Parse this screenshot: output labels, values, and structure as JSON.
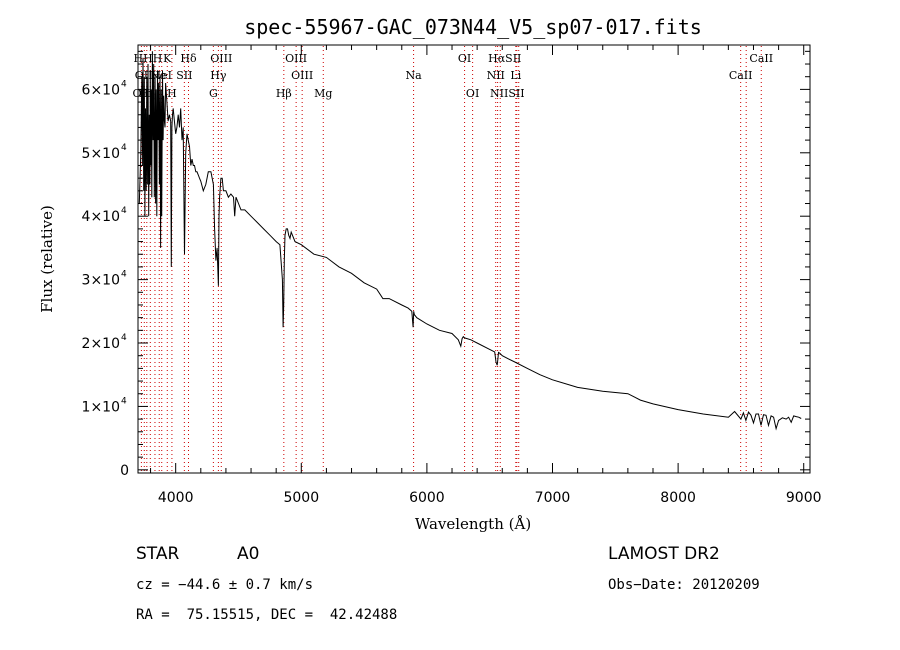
{
  "chart_data": {
    "type": "line",
    "title": "spec-55967-GAC_073N44_V5_sp07-017.fits",
    "xlabel": "Wavelength (Å)",
    "ylabel": "Flux (relative)",
    "xlim": [
      3700,
      9050
    ],
    "ylim": [
      -500,
      67000
    ],
    "x_ticks": [
      {
        "value": 4000,
        "label": "4000"
      },
      {
        "value": 5000,
        "label": "5000"
      },
      {
        "value": 6000,
        "label": "6000"
      },
      {
        "value": 7000,
        "label": "7000"
      },
      {
        "value": 8000,
        "label": "8000"
      },
      {
        "value": 9000,
        "label": "9000"
      }
    ],
    "y_ticks": [
      {
        "value": 0,
        "mant": "0",
        "exp": ""
      },
      {
        "value": 10000,
        "mant": "1×10",
        "exp": "4"
      },
      {
        "value": 20000,
        "mant": "2×10",
        "exp": "4"
      },
      {
        "value": 30000,
        "mant": "3×10",
        "exp": "4"
      },
      {
        "value": 40000,
        "mant": "4×10",
        "exp": "4"
      },
      {
        "value": 50000,
        "mant": "5×10",
        "exp": "4"
      },
      {
        "value": 60000,
        "mant": "6×10",
        "exp": "4"
      }
    ],
    "series": [
      {
        "x": [
          3710,
          3722,
          3730,
          3735,
          3740,
          3745,
          3750,
          3755,
          3760,
          3765,
          3770,
          3775,
          3780,
          3785,
          3790,
          3795,
          3798,
          3800,
          3805,
          3810,
          3815,
          3820,
          3825,
          3830,
          3835,
          3836,
          3840,
          3845,
          3850,
          3855,
          3860,
          3865,
          3870,
          3875,
          3880,
          3885,
          3889,
          3895,
          3900,
          3905,
          3910,
          3915,
          3920,
          3930,
          3940,
          3950,
          3960,
          3965,
          3970,
          3975,
          3980,
          3990,
          4000,
          4010,
          4020,
          4030,
          4040,
          4050,
          4060,
          4070,
          4080,
          4090,
          4100,
          4110,
          4120,
          4130,
          4140,
          4150,
          4160,
          4170,
          4180,
          4190,
          4200,
          4220,
          4240,
          4260,
          4280,
          4300,
          4310,
          4320,
          4330,
          4340,
          4345,
          4350,
          4360,
          4370,
          4380,
          4400,
          4420,
          4440,
          4460,
          4470,
          4480,
          4500,
          4520,
          4550,
          4600,
          4650,
          4700,
          4750,
          4800,
          4830,
          4850,
          4855,
          4860,
          4865,
          4870,
          4880,
          4890,
          4900,
          4910,
          4920,
          4950,
          5000,
          5100,
          5200,
          5300,
          5400,
          5500,
          5600,
          5650,
          5700,
          5800,
          5850,
          5880,
          5890,
          5895,
          5900,
          5920,
          6000,
          6100,
          6200,
          6250,
          6270,
          6280,
          6290,
          6300,
          6350,
          6400,
          6500,
          6540,
          6550,
          6560,
          6565,
          6570,
          6580,
          6600,
          6650,
          6700,
          6800,
          6900,
          7000,
          7200,
          7400,
          7600,
          7700,
          7800,
          8000,
          8200,
          8400,
          8450,
          8500,
          8520,
          8540,
          8560,
          8580,
          8600,
          8620,
          8640,
          8660,
          8680,
          8700,
          8720,
          8740,
          8760,
          8780,
          8800,
          8830,
          8860,
          8880,
          8900,
          8920,
          8940,
          8960,
          8980
        ],
        "y": [
          42000,
          50000,
          62000,
          48000,
          65000,
          44000,
          62000,
          40000,
          57000,
          44000,
          62000,
          45000,
          64000,
          40000,
          56000,
          45000,
          63000,
          48000,
          60000,
          43000,
          66000,
          52000,
          64000,
          43000,
          58000,
          62000,
          42000,
          60000,
          40000,
          63000,
          52000,
          61000,
          45000,
          62000,
          35000,
          60000,
          40000,
          63000,
          52000,
          59000,
          55000,
          54000,
          61000,
          58000,
          55000,
          56000,
          55000,
          32000,
          54000,
          56000,
          57000,
          55000,
          53000,
          54000,
          56000,
          54000,
          57000,
          52000,
          54000,
          34000,
          50000,
          53000,
          52000,
          51000,
          48000,
          49000,
          48000,
          48000,
          47000,
          47000,
          46500,
          46000,
          45500,
          44000,
          45000,
          47000,
          47000,
          45000,
          38000,
          33000,
          35000,
          29000,
          40000,
          43000,
          46000,
          46000,
          44000,
          44000,
          43000,
          43500,
          43000,
          40000,
          43000,
          42000,
          41000,
          41000,
          40000,
          39000,
          38000,
          37000,
          36000,
          35500,
          30000,
          22500,
          26000,
          33000,
          37000,
          38000,
          38000,
          37000,
          36500,
          37500,
          36000,
          35500,
          34000,
          33500,
          32000,
          31000,
          29500,
          28500,
          27000,
          27000,
          26000,
          25500,
          25000,
          22500,
          25000,
          24500,
          24000,
          23000,
          22000,
          21500,
          20500,
          19500,
          20700,
          21000,
          20800,
          20500,
          20000,
          19000,
          18600,
          17000,
          16500,
          17500,
          18500,
          18400,
          18000,
          17500,
          17000,
          16000,
          15000,
          14200,
          13000,
          12400,
          12000,
          11000,
          10400,
          9500,
          8800,
          8300,
          9200,
          8000,
          9000,
          7800,
          9100,
          8600,
          7400,
          8800,
          8800,
          7000,
          8700,
          8600,
          7000,
          8500,
          8300,
          6500,
          7800,
          8200,
          8000,
          8300,
          7500,
          8500,
          8400,
          8300,
          8100
        ]
      }
    ],
    "lines": [
      {
        "x": 3727,
        "label": "OII"
      },
      {
        "x": 3750,
        "label": "OII"
      },
      {
        "x": 3770,
        "label": "Hη"
      },
      {
        "x": 3798,
        "label": "Hθ"
      },
      {
        "x": 3835,
        "label": "Hζ"
      },
      {
        "x": 3869,
        "label": "NeIII"
      },
      {
        "x": 3889,
        "label": "HeI"
      },
      {
        "x": 3933,
        "label": "K"
      },
      {
        "x": 3970,
        "label": "H"
      },
      {
        "x": 4069,
        "label": "SII"
      },
      {
        "x": 4102,
        "label": "Hδ"
      },
      {
        "x": 4300,
        "label": "G"
      },
      {
        "x": 4340,
        "label": "Hγ"
      },
      {
        "x": 4363,
        "label": "OIII"
      },
      {
        "x": 4861,
        "label": "Hβ"
      },
      {
        "x": 4959,
        "label": "OIII"
      },
      {
        "x": 5007,
        "label": "OIII"
      },
      {
        "x": 5175,
        "label": "Mg"
      },
      {
        "x": 5894,
        "label": "Na"
      },
      {
        "x": 6300,
        "label": "OI"
      },
      {
        "x": 6364,
        "label": "OI"
      },
      {
        "x": 6548,
        "label": "NII"
      },
      {
        "x": 6563,
        "label": "Hα"
      },
      {
        "x": 6584,
        "label": "NII"
      },
      {
        "x": 6708,
        "label": "Li"
      },
      {
        "x": 6716,
        "label": "SII"
      },
      {
        "x": 6731,
        "label": "SII"
      },
      {
        "x": 8498,
        "label": "CaII"
      },
      {
        "x": 8542,
        "label": "CaII"
      },
      {
        "x": 8662,
        "label": "CaII"
      }
    ],
    "line_labels": [
      {
        "text": "HHH",
        "x": 3779,
        "row": 1
      },
      {
        "text": "K",
        "x": 3933,
        "row": 1
      },
      {
        "text": "Hδ",
        "x": 4102,
        "row": 1
      },
      {
        "text": "OIII",
        "x": 4363,
        "row": 1
      },
      {
        "text": "OIII",
        "x": 4959,
        "row": 1
      },
      {
        "text": "OI",
        "x": 6300,
        "row": 1
      },
      {
        "text": "HαSII",
        "x": 6620,
        "row": 1
      },
      {
        "text": "CaII",
        "x": 8662,
        "row": 1
      },
      {
        "text": "OII",
        "x": 3745,
        "row": 2
      },
      {
        "text": "Ne",
        "x": 3860,
        "row": 2
      },
      {
        "text": "HeI",
        "x": 3889,
        "row": 2
      },
      {
        "text": "SII",
        "x": 4069,
        "row": 2
      },
      {
        "text": "Hγ",
        "x": 4340,
        "row": 2
      },
      {
        "text": "OIII",
        "x": 5007,
        "row": 2
      },
      {
        "text": "Na",
        "x": 5894,
        "row": 2
      },
      {
        "text": "NII",
        "x": 6548,
        "row": 2
      },
      {
        "text": "Li",
        "x": 6708,
        "row": 2
      },
      {
        "text": "CaII",
        "x": 8498,
        "row": 2
      },
      {
        "text": "OII",
        "x": 3727,
        "row": 3
      },
      {
        "text": "Hη",
        "x": 3770,
        "row": 3
      },
      {
        "text": "H",
        "x": 3970,
        "row": 3
      },
      {
        "text": "G",
        "x": 4300,
        "row": 3
      },
      {
        "text": "Hβ",
        "x": 4861,
        "row": 3
      },
      {
        "text": "Mg",
        "x": 5175,
        "row": 3
      },
      {
        "text": "OI",
        "x": 6364,
        "row": 3
      },
      {
        "text": "NIISII",
        "x": 6640,
        "row": 3
      }
    ]
  },
  "info": {
    "object_type": "STAR",
    "subclass": "A0",
    "survey": "LAMOST DR2",
    "redshift": "cz = −44.6 ± 0.7 km/s",
    "obs_date": "Obs−Date: 20120209",
    "coords": "RA =  75.15515, DEC =  42.42488"
  },
  "colors": {
    "spectrum": "#000000",
    "line_marker": "#cc0000",
    "axes": "#000000"
  }
}
